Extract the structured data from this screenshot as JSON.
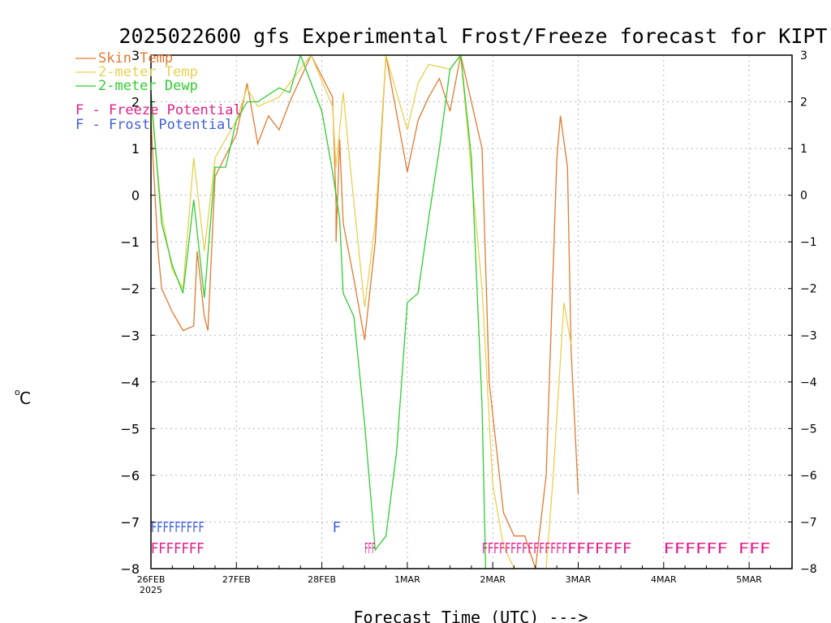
{
  "chart_data": {
    "type": "line",
    "title": "2025022600 gfs Experimental Frost/Freeze forecast for KIPT",
    "xlabel": "Forecast Time (UTC) --->",
    "ylabel": "°C",
    "ylabel_display": "oC",
    "ylim": [
      -8,
      3
    ],
    "yticks": [
      3,
      2,
      1,
      0,
      -1,
      -2,
      -3,
      -4,
      -5,
      -6,
      -7,
      -8
    ],
    "xlim": [
      "2025-02-26 00Z",
      "2025-03-06 00Z"
    ],
    "xticks": [
      "26FEB",
      "27FEB",
      "28FEB",
      "1MAR",
      "2MAR",
      "3MAR",
      "4MAR",
      "5MAR"
    ],
    "xtick_sub": "2025",
    "grid": true,
    "legend_position": "top-left",
    "series": [
      {
        "name": "Skin Temp",
        "color": "#e07a30",
        "points": [
          [
            "2025-02-26 00Z",
            1.6
          ],
          [
            "2025-02-26 02Z",
            -1.2
          ],
          [
            "2025-02-26 03Z",
            -2.0
          ],
          [
            "2025-02-26 06Z",
            -2.5
          ],
          [
            "2025-02-26 09Z",
            -2.9
          ],
          [
            "2025-02-26 12Z",
            -2.8
          ],
          [
            "2025-02-26 13Z",
            -1.2
          ],
          [
            "2025-02-26 15Z",
            -2.6
          ],
          [
            "2025-02-26 16Z",
            -2.9
          ],
          [
            "2025-02-26 18Z",
            0.4
          ],
          [
            "2025-02-27 00Z",
            1.3
          ],
          [
            "2025-02-27 03Z",
            2.4
          ],
          [
            "2025-02-27 06Z",
            1.1
          ],
          [
            "2025-02-27 09Z",
            1.7
          ],
          [
            "2025-02-27 12Z",
            1.4
          ],
          [
            "2025-02-27 15Z",
            2.0
          ],
          [
            "2025-02-27 21Z",
            3.0
          ],
          [
            "2025-02-28 03Z",
            2.1
          ],
          [
            "2025-02-28 04Z",
            -0.2
          ],
          [
            "2025-02-28 04Z",
            -1.0
          ],
          [
            "2025-02-28 05Z",
            1.2
          ],
          [
            "2025-02-28 06Z",
            -0.6
          ],
          [
            "2025-02-28 09Z",
            -1.8
          ],
          [
            "2025-02-28 12Z",
            -3.1
          ],
          [
            "2025-02-28 15Z",
            -1.0
          ],
          [
            "2025-02-28 18Z",
            3.0
          ],
          [
            "2025-03-01 00Z",
            0.5
          ],
          [
            "2025-03-01 03Z",
            1.6
          ],
          [
            "2025-03-01 06Z",
            2.1
          ],
          [
            "2025-03-01 09Z",
            2.5
          ],
          [
            "2025-03-01 12Z",
            1.8
          ],
          [
            "2025-03-01 15Z",
            3.0
          ],
          [
            "2025-03-01 21Z",
            1.0
          ],
          [
            "2025-03-01 23Z",
            -4.0
          ],
          [
            "2025-03-02 03Z",
            -6.8
          ],
          [
            "2025-03-02 06Z",
            -7.3
          ],
          [
            "2025-03-02 09Z",
            -7.3
          ],
          [
            "2025-03-02 12Z",
            -8.0
          ],
          [
            "2025-03-02 15Z",
            -6.0
          ],
          [
            "2025-03-02 18Z",
            0.8
          ],
          [
            "2025-03-02 19Z",
            1.7
          ],
          [
            "2025-03-02 21Z",
            0.6
          ],
          [
            "2025-03-02 22Z",
            -3.3
          ],
          [
            "2025-03-03 00Z",
            -6.4
          ]
        ]
      },
      {
        "name": "2-meter Temp",
        "color": "#e8d050",
        "points": [
          [
            "2025-02-26 00Z",
            2.0
          ],
          [
            "2025-02-26 03Z",
            -0.4
          ],
          [
            "2025-02-26 06Z",
            -1.6
          ],
          [
            "2025-02-26 09Z",
            -2.0
          ],
          [
            "2025-02-26 12Z",
            0.8
          ],
          [
            "2025-02-26 15Z",
            -1.2
          ],
          [
            "2025-02-26 18Z",
            0.8
          ],
          [
            "2025-02-27 00Z",
            1.6
          ],
          [
            "2025-02-27 03Z",
            2.3
          ],
          [
            "2025-02-27 06Z",
            1.9
          ],
          [
            "2025-02-27 12Z",
            2.1
          ],
          [
            "2025-02-27 21Z",
            3.0
          ],
          [
            "2025-02-28 03Z",
            1.9
          ],
          [
            "2025-02-28 04Z",
            0.6
          ],
          [
            "2025-02-28 06Z",
            2.2
          ],
          [
            "2025-02-28 08Z",
            0.6
          ],
          [
            "2025-02-28 12Z",
            -2.4
          ],
          [
            "2025-02-28 15Z",
            -0.6
          ],
          [
            "2025-02-28 18Z",
            3.0
          ],
          [
            "2025-03-01 00Z",
            1.4
          ],
          [
            "2025-03-01 03Z",
            2.4
          ],
          [
            "2025-03-01 06Z",
            2.8
          ],
          [
            "2025-03-01 12Z",
            2.7
          ],
          [
            "2025-03-01 15Z",
            3.0
          ],
          [
            "2025-03-01 21Z",
            -2.0
          ],
          [
            "2025-03-02 00Z",
            -6.2
          ],
          [
            "2025-03-02 03Z",
            -7.5
          ],
          [
            "2025-03-02 06Z",
            -8.0
          ],
          [
            "2025-03-02 15Z",
            -8.0
          ],
          [
            "2025-03-02 17Z",
            -6.0
          ],
          [
            "2025-03-02 20Z",
            -2.3
          ],
          [
            "2025-03-02 22Z",
            -3.2
          ]
        ]
      },
      {
        "name": "2-meter Dewp",
        "color": "#30cc30",
        "points": [
          [
            "2025-02-26 00Z",
            2.2
          ],
          [
            "2025-02-26 03Z",
            -0.6
          ],
          [
            "2025-02-26 06Z",
            -1.5
          ],
          [
            "2025-02-26 09Z",
            -2.1
          ],
          [
            "2025-02-26 12Z",
            -0.1
          ],
          [
            "2025-02-26 15Z",
            -2.2
          ],
          [
            "2025-02-26 18Z",
            0.6
          ],
          [
            "2025-02-26 21Z",
            0.6
          ],
          [
            "2025-02-27 00Z",
            1.6
          ],
          [
            "2025-02-27 03Z",
            2.0
          ],
          [
            "2025-02-27 06Z",
            2.0
          ],
          [
            "2025-02-27 12Z",
            2.3
          ],
          [
            "2025-02-27 15Z",
            2.2
          ],
          [
            "2025-02-27 18Z",
            3.0
          ],
          [
            "2025-02-28 00Z",
            1.8
          ],
          [
            "2025-02-28 03Z",
            0.5
          ],
          [
            "2025-02-28 05Z",
            -0.5
          ],
          [
            "2025-02-28 06Z",
            -2.1
          ],
          [
            "2025-02-28 09Z",
            -2.6
          ],
          [
            "2025-02-28 12Z",
            -4.9
          ],
          [
            "2025-02-28 15Z",
            -7.6
          ],
          [
            "2025-02-28 18Z",
            -7.3
          ],
          [
            "2025-02-28 21Z",
            -5.5
          ],
          [
            "2025-03-01 00Z",
            -2.3
          ],
          [
            "2025-03-01 03Z",
            -2.1
          ],
          [
            "2025-03-01 06Z",
            -0.5
          ],
          [
            "2025-03-01 09Z",
            1.0
          ],
          [
            "2025-03-01 12Z",
            2.7
          ],
          [
            "2025-03-01 15Z",
            3.0
          ],
          [
            "2025-03-01 18Z",
            0.8
          ],
          [
            "2025-03-01 21Z",
            -4.5
          ],
          [
            "2025-03-01 22Z",
            -8.0
          ]
        ]
      }
    ],
    "freeze_marks": {
      "name": "F - Freeze Potential",
      "color": "#e0208a",
      "runs": [
        {
          "from": "2025-02-26 00Z",
          "to": "2025-02-26 15Z",
          "text": "FFFFFFF"
        },
        {
          "from": "2025-02-28 12Z",
          "to": "2025-02-28 15Z",
          "text": "FFF"
        },
        {
          "from": "2025-03-01 21Z",
          "to": "2025-03-02 21Z",
          "text": "FFFFFFFFFFFFFFF"
        },
        {
          "from": "2025-03-02 21Z",
          "to": "2025-03-03 15Z",
          "text": "FFFFFFF"
        },
        {
          "from": "2025-03-04 00Z",
          "to": "2025-03-04 18Z",
          "text": "FFFFFF"
        },
        {
          "from": "2025-03-04 21Z",
          "to": "2025-03-05 06Z",
          "text": "FFF"
        }
      ]
    },
    "frost_marks": {
      "name": "F - Frost Potential",
      "color": "#4060d8",
      "runs": [
        {
          "from": "2025-02-26 00Z",
          "to": "2025-02-26 15Z",
          "text": "FFFFFFFFF"
        },
        {
          "from": "2025-02-28 03Z",
          "to": "2025-02-28 03Z",
          "text": "F"
        }
      ]
    }
  }
}
